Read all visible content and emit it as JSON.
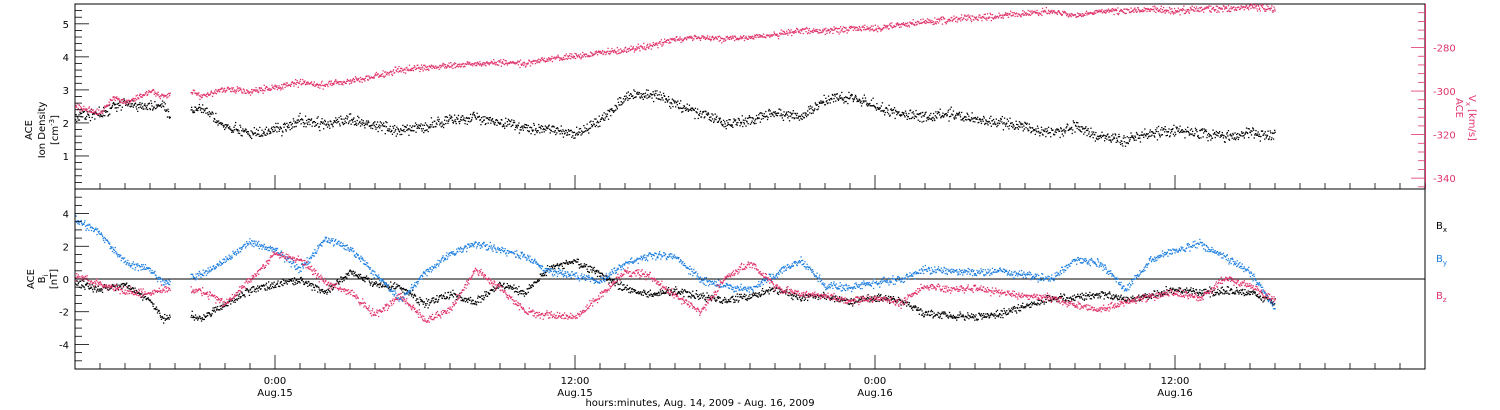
{
  "colors": {
    "black": "#000000",
    "pink": "#e0356b",
    "blue": "#1e7fe0",
    "frame": "#000000"
  },
  "labels": {
    "top_left_line1": "ACE",
    "top_left_line2": "Ion Density",
    "top_left_unit_base": "[cm",
    "top_left_unit_sup": "-3",
    "top_left_unit_end": "]",
    "top_right_line1": "ACE",
    "top_right_v": "V",
    "top_right_sub": "x",
    "top_right_unit": "[km/s]",
    "bottom_left_line1": "ACE",
    "bottom_left_b": "B",
    "bottom_left_unit": "[nT]",
    "bottom_left_sub": "i",
    "legend_bx_main": "B",
    "legend_bx_sub": "x",
    "legend_by_main": "B",
    "legend_by_sub": "y",
    "legend_bz_main": "B",
    "legend_bz_sub": "z",
    "x_axis_title": "hours:minutes, Aug. 14, 2009 - Aug. 16, 2009"
  },
  "x_ticks": [
    {
      "time": "0:00",
      "date": "Aug.15",
      "hour": 24
    },
    {
      "time": "12:00",
      "date": "Aug.15",
      "hour": 36
    },
    {
      "time": "0:00",
      "date": "Aug.16",
      "hour": 48
    },
    {
      "time": "12:00",
      "date": "Aug.16",
      "hour": 60
    }
  ],
  "chart_data": [
    {
      "type": "scatter",
      "xlim_hours": [
        16,
        70
      ],
      "x_unit": "hours since 2009-08-14 00:00",
      "left_axis": {
        "ylim": [
          0,
          5.6
        ],
        "ticks": [
          "1",
          "2",
          "3",
          "4",
          "5"
        ]
      },
      "right_axis": {
        "ylim": [
          -345,
          -260
        ],
        "ticks": [
          "-340",
          "-320",
          "-300",
          "-280"
        ]
      },
      "grid": false,
      "series": [
        {
          "axis": "left",
          "color": "#000000",
          "anchors": [
            [
              16,
              2.2
            ],
            [
              17,
              2.3
            ],
            [
              17.5,
              2.5
            ],
            [
              18,
              2.6
            ],
            [
              19,
              2.5
            ],
            [
              19.5,
              2.6
            ],
            [
              19.8,
              2.2
            ],
            [
              20.6,
              2.3
            ],
            [
              21,
              2.5
            ],
            [
              21.5,
              2.2
            ],
            [
              22,
              1.9
            ],
            [
              23,
              1.7
            ],
            [
              24,
              1.8
            ],
            [
              25,
              2.1
            ],
            [
              26,
              2.0
            ],
            [
              27,
              2.1
            ],
            [
              28,
              1.9
            ],
            [
              29,
              1.8
            ],
            [
              30,
              1.9
            ],
            [
              31,
              2.1
            ],
            [
              32,
              2.2
            ],
            [
              33,
              2.0
            ],
            [
              34,
              1.9
            ],
            [
              35,
              1.8
            ],
            [
              36,
              1.7
            ],
            [
              37,
              2.1
            ],
            [
              38,
              2.8
            ],
            [
              39,
              2.9
            ],
            [
              40,
              2.6
            ],
            [
              41,
              2.3
            ],
            [
              42,
              2.0
            ],
            [
              43,
              2.1
            ],
            [
              44,
              2.3
            ],
            [
              45,
              2.2
            ],
            [
              46,
              2.7
            ],
            [
              47,
              2.8
            ],
            [
              48,
              2.5
            ],
            [
              49,
              2.3
            ],
            [
              50,
              2.2
            ],
            [
              51,
              2.3
            ],
            [
              52,
              2.1
            ],
            [
              53,
              2.0
            ],
            [
              54,
              1.9
            ],
            [
              55,
              1.7
            ],
            [
              56,
              1.9
            ],
            [
              57,
              1.6
            ],
            [
              58,
              1.5
            ],
            [
              59,
              1.7
            ],
            [
              60,
              1.8
            ],
            [
              61,
              1.7
            ],
            [
              62,
              1.6
            ],
            [
              63,
              1.7
            ],
            [
              64,
              1.6
            ]
          ]
        },
        {
          "axis": "right",
          "color": "#e0356b",
          "anchors": [
            [
              16,
              -307
            ],
            [
              17,
              -310
            ],
            [
              17.5,
              -303
            ],
            [
              18,
              -305
            ],
            [
              19,
              -300
            ],
            [
              19.5,
              -302
            ],
            [
              20.6,
              -300
            ],
            [
              21,
              -302
            ],
            [
              22,
              -299
            ],
            [
              23,
              -300
            ],
            [
              24,
              -298
            ],
            [
              25,
              -296
            ],
            [
              26,
              -297
            ],
            [
              27,
              -295
            ],
            [
              28,
              -293
            ],
            [
              29,
              -290
            ],
            [
              30,
              -289
            ],
            [
              31,
              -288
            ],
            [
              32,
              -287
            ],
            [
              33,
              -287
            ],
            [
              34,
              -287
            ],
            [
              35,
              -285
            ],
            [
              36,
              -284
            ],
            [
              37,
              -282
            ],
            [
              38,
              -281
            ],
            [
              39,
              -279
            ],
            [
              40,
              -276
            ],
            [
              41,
              -275
            ],
            [
              42,
              -276
            ],
            [
              43,
              -275
            ],
            [
              44,
              -274
            ],
            [
              45,
              -272
            ],
            [
              46,
              -272
            ],
            [
              47,
              -271
            ],
            [
              48,
              -271
            ],
            [
              49,
              -269
            ],
            [
              50,
              -268
            ],
            [
              51,
              -267
            ],
            [
              52,
              -266
            ],
            [
              53,
              -265
            ],
            [
              54,
              -264
            ],
            [
              55,
              -263
            ],
            [
              56,
              -265
            ],
            [
              57,
              -263
            ],
            [
              58,
              -263
            ],
            [
              59,
              -262
            ],
            [
              60,
              -263
            ],
            [
              61,
              -262
            ],
            [
              62,
              -262
            ],
            [
              63,
              -261
            ],
            [
              64,
              -262
            ]
          ]
        }
      ]
    },
    {
      "type": "scatter",
      "xlim_hours": [
        16,
        70
      ],
      "ylim": [
        -5.5,
        5.5
      ],
      "y_ticks": [
        "-4",
        "-2",
        "0",
        "2",
        "4"
      ],
      "zero_line": true,
      "grid": false,
      "series": [
        {
          "name": "Bx",
          "color": "#000000",
          "anchors": [
            [
              16,
              -0.2
            ],
            [
              17,
              -0.6
            ],
            [
              18,
              -0.3
            ],
            [
              19,
              -1.3
            ],
            [
              19.5,
              -2.4
            ],
            [
              20.5,
              -2.1
            ],
            [
              21,
              -2.4
            ],
            [
              22,
              -1.5
            ],
            [
              23,
              -0.6
            ],
            [
              24,
              -0.3
            ],
            [
              25,
              0.0
            ],
            [
              26,
              -0.8
            ],
            [
              27,
              0.5
            ],
            [
              28,
              -0.3
            ],
            [
              29,
              -0.5
            ],
            [
              30,
              -1.5
            ],
            [
              31,
              -0.9
            ],
            [
              32,
              -1.4
            ],
            [
              33,
              -0.3
            ],
            [
              34,
              -0.8
            ],
            [
              35,
              0.8
            ],
            [
              36,
              1.1
            ],
            [
              37,
              0.3
            ],
            [
              38,
              -0.6
            ],
            [
              39,
              -0.9
            ],
            [
              40,
              -0.7
            ],
            [
              41,
              -1.0
            ],
            [
              42,
              -1.3
            ],
            [
              43,
              -1.0
            ],
            [
              44,
              -0.6
            ],
            [
              45,
              -1.1
            ],
            [
              46,
              -1.0
            ],
            [
              47,
              -1.4
            ],
            [
              48,
              -1.1
            ],
            [
              49,
              -1.3
            ],
            [
              50,
              -2.1
            ],
            [
              51,
              -2.2
            ],
            [
              52,
              -2.3
            ],
            [
              53,
              -2.1
            ],
            [
              54,
              -1.6
            ],
            [
              55,
              -1.2
            ],
            [
              56,
              -1.1
            ],
            [
              57,
              -0.9
            ],
            [
              58,
              -1.2
            ],
            [
              59,
              -1.0
            ],
            [
              60,
              -0.6
            ],
            [
              61,
              -0.8
            ],
            [
              62,
              -0.7
            ],
            [
              63,
              -0.8
            ],
            [
              64,
              -1.4
            ]
          ]
        },
        {
          "name": "By",
          "color": "#1e7fe0",
          "anchors": [
            [
              16,
              3.6
            ],
            [
              17,
              2.8
            ],
            [
              18,
              1.0
            ],
            [
              19,
              0.6
            ],
            [
              19.5,
              -0.2
            ],
            [
              21,
              0.3
            ],
            [
              22,
              1.2
            ],
            [
              23,
              2.3
            ],
            [
              24,
              1.8
            ],
            [
              25,
              0.6
            ],
            [
              26,
              2.5
            ],
            [
              27,
              1.9
            ],
            [
              28,
              0.3
            ],
            [
              29,
              -1.2
            ],
            [
              30,
              0.4
            ],
            [
              31,
              1.6
            ],
            [
              32,
              2.2
            ],
            [
              33,
              1.8
            ],
            [
              34,
              1.4
            ],
            [
              35,
              0.5
            ],
            [
              36,
              0.2
            ],
            [
              37,
              -0.1
            ],
            [
              38,
              1.0
            ],
            [
              39,
              1.5
            ],
            [
              40,
              1.4
            ],
            [
              41,
              0.0
            ],
            [
              42,
              -0.4
            ],
            [
              43,
              -0.6
            ],
            [
              44,
              0.3
            ],
            [
              45,
              1.2
            ],
            [
              46,
              -0.4
            ],
            [
              47,
              -0.5
            ],
            [
              48,
              -0.2
            ],
            [
              49,
              0.0
            ],
            [
              50,
              0.6
            ],
            [
              51,
              0.5
            ],
            [
              52,
              0.4
            ],
            [
              53,
              0.5
            ],
            [
              54,
              0.3
            ],
            [
              55,
              0.0
            ],
            [
              56,
              1.2
            ],
            [
              57,
              1.0
            ],
            [
              58,
              -0.6
            ],
            [
              59,
              1.2
            ],
            [
              60,
              1.8
            ],
            [
              61,
              2.2
            ],
            [
              62,
              1.4
            ],
            [
              63,
              0.4
            ],
            [
              64,
              -1.7
            ]
          ]
        },
        {
          "name": "Bz",
          "color": "#e0356b",
          "anchors": [
            [
              16,
              0.2
            ],
            [
              17,
              -0.3
            ],
            [
              18,
              -0.7
            ],
            [
              19,
              -0.9
            ],
            [
              19.5,
              -0.6
            ],
            [
              21,
              -0.7
            ],
            [
              22,
              -1.5
            ],
            [
              23,
              0.0
            ],
            [
              24,
              1.6
            ],
            [
              25,
              1.2
            ],
            [
              26,
              -0.2
            ],
            [
              27,
              -0.8
            ],
            [
              28,
              -2.2
            ],
            [
              29,
              -1.0
            ],
            [
              30,
              -2.5
            ],
            [
              31,
              -1.8
            ],
            [
              32,
              0.6
            ],
            [
              33,
              -0.5
            ],
            [
              34,
              -2.0
            ],
            [
              35,
              -2.2
            ],
            [
              36,
              -2.3
            ],
            [
              37,
              -1.0
            ],
            [
              38,
              0.5
            ],
            [
              39,
              0.2
            ],
            [
              40,
              -1.0
            ],
            [
              41,
              -2.0
            ],
            [
              42,
              0.1
            ],
            [
              43,
              1.0
            ],
            [
              44,
              -0.5
            ],
            [
              45,
              -0.9
            ],
            [
              46,
              -1.0
            ],
            [
              47,
              -1.3
            ],
            [
              48,
              -1.1
            ],
            [
              49,
              -1.5
            ],
            [
              50,
              -0.4
            ],
            [
              51,
              -0.6
            ],
            [
              52,
              -0.5
            ],
            [
              53,
              -0.8
            ],
            [
              54,
              -1.0
            ],
            [
              55,
              -1.1
            ],
            [
              56,
              -1.6
            ],
            [
              57,
              -1.8
            ],
            [
              58,
              -1.4
            ],
            [
              59,
              -1.0
            ],
            [
              60,
              -0.8
            ],
            [
              61,
              -1.2
            ],
            [
              62,
              0.1
            ],
            [
              63,
              -0.4
            ],
            [
              64,
              -1.3
            ]
          ]
        }
      ]
    }
  ]
}
